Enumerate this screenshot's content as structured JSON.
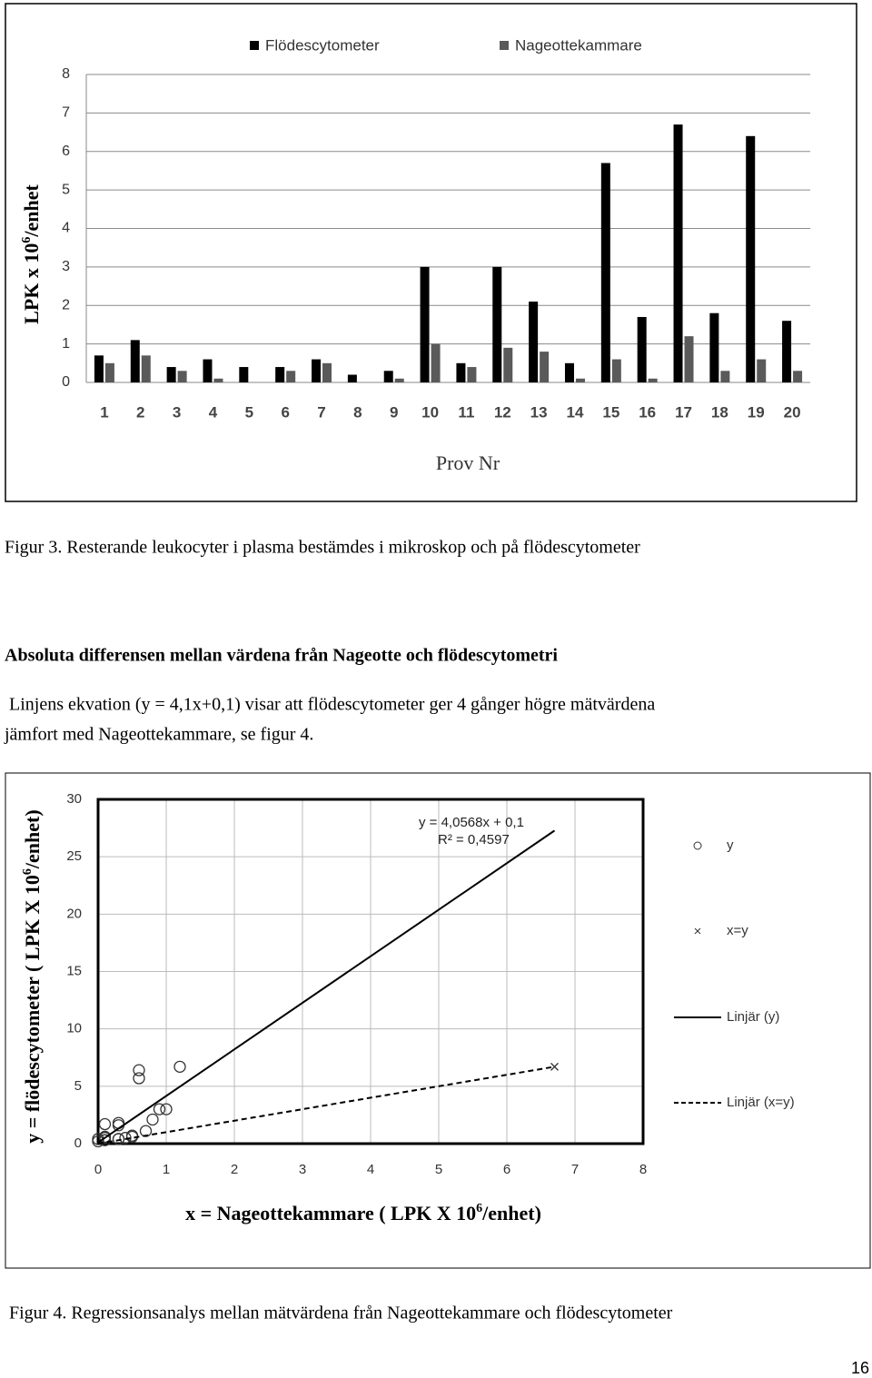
{
  "chart_data": [
    {
      "type": "bar",
      "categories": [
        "1",
        "2",
        "3",
        "4",
        "5",
        "6",
        "7",
        "8",
        "9",
        "10",
        "11",
        "12",
        "13",
        "14",
        "15",
        "16",
        "17",
        "18",
        "19",
        "20"
      ],
      "series": [
        {
          "name": "Flödescytometer",
          "color": "#000000",
          "values": [
            0.7,
            1.1,
            0.4,
            0.6,
            0.4,
            0.4,
            0.6,
            0.2,
            0.3,
            3.0,
            0.5,
            3.0,
            2.1,
            0.5,
            5.7,
            1.7,
            6.7,
            1.8,
            6.4,
            1.6
          ]
        },
        {
          "name": "Nageottekammare",
          "color": "#5a5a5a",
          "values": [
            0.5,
            0.7,
            0.3,
            0.1,
            0,
            0.3,
            0.5,
            0,
            0.1,
            1.0,
            0.4,
            0.9,
            0.8,
            0.1,
            0.6,
            0.1,
            1.2,
            0.3,
            0.6,
            0.3
          ]
        }
      ],
      "ylim": [
        0,
        8
      ],
      "yticks": [
        0,
        1,
        2,
        3,
        4,
        5,
        6,
        7,
        8
      ],
      "grid": true,
      "y_label": [
        "LPK x 10",
        "6",
        "/enhet"
      ],
      "x_label": "Prov Nr"
    },
    {
      "type": "scatter",
      "series": [
        {
          "name": "y",
          "marker": "circle",
          "color": "#333333",
          "x": [
            0.5,
            0.7,
            0.3,
            0.1,
            0,
            0.3,
            0.5,
            0,
            0.1,
            1.0,
            0.4,
            0.9,
            0.8,
            0.1,
            0.6,
            0.1,
            1.2,
            0.3,
            0.6,
            0.3
          ],
          "values": [
            0.7,
            1.1,
            0.4,
            0.6,
            0.4,
            0.4,
            0.6,
            0.2,
            0.3,
            3.0,
            0.5,
            3.0,
            2.1,
            0.5,
            5.7,
            1.7,
            6.7,
            1.8,
            6.4,
            1.6
          ]
        },
        {
          "name": "x=y",
          "marker": "x",
          "color": "#333333",
          "x": [
            6.7
          ],
          "values": [
            6.7
          ]
        },
        {
          "name": "Linjär (y)",
          "marker": "none",
          "dash": false,
          "color": "#000000",
          "x": [
            0,
            6.7
          ],
          "values": [
            0.1,
            27.28
          ]
        },
        {
          "name": "Linjär (x=y)",
          "marker": "none",
          "dash": true,
          "color": "#000000",
          "x": [
            0,
            6.7
          ],
          "values": [
            0,
            6.7
          ]
        }
      ],
      "xlim": [
        0,
        8
      ],
      "xticks": [
        0,
        1,
        2,
        3,
        4,
        5,
        6,
        7,
        8
      ],
      "ylim": [
        0,
        30
      ],
      "yticks": [
        0,
        5,
        10,
        15,
        20,
        25,
        30
      ],
      "grid": true,
      "annotations": [
        "y = 4,0568x + 0,1",
        "R² = 0,4597"
      ],
      "y_label": [
        "y = flödescytometer ( LPK X 10",
        "6",
        "/enhet)"
      ],
      "x_label": [
        "x = Nageottekammare ( LPK X 10",
        "6",
        "/enhet)"
      ]
    }
  ],
  "figure3_caption": "Figur 3. Resterande leukocyter i plasma bestämdes i mikroskop och på flödescytometer",
  "heading": "Absoluta differensen mellan värdena från Nageotte och flödescytometri",
  "paragraph": [
    "Linjens ekvation (y = 4,1x+0,1) visar att flödescytometer ger 4 gånger högre mätvärdena",
    "jämfort med Nageottekammare, se figur 4."
  ],
  "figure4_caption": "Figur 4. Regressionsanalys mellan mätvärdena från Nageottekammare och flödescytometer",
  "page_number": "16"
}
